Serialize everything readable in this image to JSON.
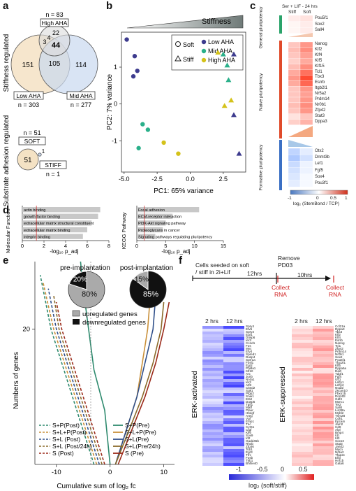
{
  "panel_labels": {
    "a": "a",
    "b": "b",
    "c": "c",
    "d": "d",
    "e": "e",
    "f": "f"
  },
  "panel_a": {
    "ylabel_stiffness": "Stiffness regulated",
    "ylabel_substrate": "Substrate adhesion regulated",
    "high_n": "n = 83",
    "high_label": "High AHA",
    "low_label": "Low AHA",
    "low_n": "n = 303",
    "mid_label": "Mid AHA",
    "mid_n": "n = 277",
    "v_low_only": "151",
    "v_mid_only": "114",
    "v_low_mid": "105",
    "v_center": "44",
    "v_high_only": "22",
    "v_low_high": "3",
    "v_mid_high": "4",
    "soft_n": "n = 51",
    "soft_label": "SOFT",
    "soft_value": "51",
    "stiff_overlap": "1",
    "stiff_label": "STIFF",
    "stiff_n": "n = 1"
  },
  "panel_b": {
    "stiffness_label": "Stiffness",
    "legend": {
      "soft": "Soft",
      "stiff": "Stiff",
      "low": "Low AHA",
      "mid": "Mid AHA",
      "high": "High AHA"
    },
    "colors": {
      "low": "#3d3b8e",
      "mid": "#2ab08a",
      "high": "#d4c21a"
    }
  },
  "panel_c": {
    "condition": "Ser + LIF - 24 hrs",
    "col_stiff": "Stiff",
    "col_soft": "Soft",
    "group_general": "General pluripotency",
    "group_naive": "Naive pluripotency",
    "group_formative": "Formative pluripotency",
    "colorbar_label": "log₂ (StemBond / TCP)",
    "colorbar_ticks": [
      "-1",
      "0",
      "0.5",
      "1"
    ],
    "general_genes": [
      "Pou5f1",
      "Sox2",
      "Sall4"
    ],
    "naive_genes": [
      "Nanog",
      "Klf2",
      "Klf4",
      "Klf5",
      "Klf15",
      "Tcl1",
      "Tbx3",
      "Esrrb",
      "Itgb2l1",
      "Nr5a2",
      "Prdm14",
      "Nr0b1",
      "Zfp42",
      "Stat3",
      "Dppa3"
    ],
    "formative_genes": [
      "Otx2",
      "Dnmt3b",
      "Lef1",
      "Fgf5",
      "Sox4",
      "Pou3f1"
    ],
    "general_values": [
      [
        0.1,
        0.15
      ],
      [
        0.05,
        0.1
      ],
      [
        0.05,
        0.1
      ]
    ],
    "naive_values": [
      [
        0.3,
        0.55
      ],
      [
        0.35,
        0.6
      ],
      [
        0.3,
        0.5
      ],
      [
        0.25,
        0.45
      ],
      [
        0.35,
        0.6
      ],
      [
        0.45,
        0.75
      ],
      [
        0.55,
        0.95
      ],
      [
        0.45,
        0.8
      ],
      [
        0.3,
        0.55
      ],
      [
        0.3,
        0.5
      ],
      [
        0.3,
        0.55
      ],
      [
        0.35,
        0.6
      ],
      [
        0.3,
        0.55
      ],
      [
        0.15,
        0.3
      ],
      [
        0.25,
        0.4
      ]
    ],
    "formative_values": [
      [
        -0.35,
        -0.15
      ],
      [
        -0.45,
        -0.25
      ],
      [
        -0.3,
        -0.1
      ],
      [
        -0.25,
        -0.1
      ],
      [
        -0.2,
        -0.05
      ],
      [
        -0.15,
        -0.05
      ]
    ]
  },
  "panel_d": {
    "go_title": "Molecular Function",
    "go_xlabel": "-log₁₀ p_adj",
    "go_terms": [
      "actin binding",
      "growth factor binding",
      "extracellular matrix structural constituent",
      "extracellular matrix binding",
      "integrin binding"
    ],
    "go_values": [
      7.2,
      7.0,
      6.4,
      6.0,
      5.6
    ],
    "go_ticks": [
      "0",
      "2",
      "4",
      "6",
      "8"
    ],
    "kegg_title": "KEGG Pathway",
    "kegg_xlabel": "-log₁₀ p_adj",
    "kegg_terms": [
      "Focal adhesion",
      "ECM-receptor interaction",
      "PI3K-Akt signaling pathway",
      "Proteoglycans in cancer",
      "Signaling pathways regulating pluripotency"
    ],
    "kegg_values": [
      10.8,
      6.2,
      5.0,
      4.5,
      3.2
    ],
    "kegg_ticks": [
      "0",
      "5",
      "10",
      "15"
    ]
  },
  "panel_e": {
    "ylabel": "Numbers of genes",
    "xlabel": "Cumulative sum of log₂ fc",
    "pie_pre_title": "pre-implantation",
    "pie_post_title": "post-implantation",
    "pie_pre": {
      "up": 80,
      "down": 20,
      "up_label": "80%",
      "down_label": "20%"
    },
    "pie_post": {
      "up": 15,
      "down": 85,
      "up_label": "15%",
      "down_label": "85%"
    },
    "legend_up": "upregulated genes",
    "legend_down": "downregulated genes",
    "x_ticks": [
      "-10",
      "0",
      "10"
    ],
    "y_ticks": [
      "20"
    ],
    "legend_dashed": [
      "S+P(Post)",
      "S+L+P(Post)",
      "S+L (Post)",
      "S+L (Post/24h)",
      "S (Post)"
    ],
    "legend_solid": [
      "S+P(Pre)",
      "S+L+P(Pre)",
      "S+L(Pre)",
      "S+L(Pre/24h)",
      "S (Pre)"
    ],
    "colors": [
      "#2e8a6e",
      "#c9903a",
      "#2f4f8a",
      "#8a6a2a",
      "#9b2a1a"
    ]
  },
  "panel_f": {
    "timeline_start": "Cells seeded on soft / stiff in 2i+Lif",
    "timeline_12h": "12hrs",
    "timeline_remove": "Remove PD03",
    "timeline_10h": "10hrs",
    "collect1": "Collect RNA",
    "collect2": "Collect RNA",
    "col_2h": "2 hrs",
    "col_12h": "12 hrs",
    "col_2h_b": "2 hrs",
    "col_12h_b": "12 hrs",
    "label_activated": "ERK-activated",
    "label_suppressed": "ERK-suppressed",
    "colorbar_ticks": [
      "-1",
      "-0.5",
      "0",
      "0.5"
    ],
    "colorbar_label": "log₂ (soft/stiff)",
    "activated_genes": [
      "Spry4",
      "Etv5",
      "Spry2",
      "Egr1",
      "Dusp6",
      "Ier3",
      "Ccnd1",
      "Fos",
      "Myc",
      "Etv4",
      "Spred1",
      "Dusp4",
      "Sprr1a",
      "Fosl1",
      "Egr2",
      "Phlda1",
      "Klf10",
      "Arc",
      "Junb",
      "Nr4a1",
      "Ier2",
      "Atf3",
      "Cited2",
      "Sgk1",
      "Ptgs2",
      "Snai1",
      "Ets2",
      "Dusp5",
      "Tgif1",
      "Maff",
      "Plaur",
      "Hbegf",
      "Areg",
      "Vgf",
      "Emp1",
      "Tnc",
      "Cyr61",
      "Ctgf",
      "Klf6",
      "Sox9",
      "Id2",
      "Gadd45b",
      "Rhob",
      "Zfp36",
      "Tob1",
      "Egr3",
      "Tfrc",
      "Fosb",
      "Trib1",
      "Bhlhe40"
    ],
    "suppressed_genes": [
      "Ccl21a",
      "Dppa3",
      "Tbx3",
      "Klf2",
      "Klf4",
      "Esrrb",
      "Nanog",
      "Tcl1",
      "Zfp42",
      "Prdm14",
      "Nr0b1",
      "Sox2",
      "Pou5f1",
      "Tfcp2l1",
      "Klf5",
      "Dppa5a",
      "Dazl",
      "Tdgf1",
      "Fgf4",
      "Utf1",
      "Lefty1",
      "Lefty2",
      "Nodal",
      "Zscan10",
      "Fbxo15",
      "Dnmt3l",
      "Gdf3",
      "Morc1",
      "Tet2",
      "Sall4",
      "Lin28a",
      "Mybl2",
      "Trim28",
      "Cdh1",
      "Epcam",
      "Jam2",
      "Cd9",
      "Alpl",
      "Bmp4",
      "Id1",
      "Id3",
      "Socs3",
      "Stat3",
      "Jarid2",
      "Mycn",
      "Nr5a2",
      "Tfap2c",
      "Elf3",
      "Hnf1b",
      "Gata6"
    ]
  }
}
